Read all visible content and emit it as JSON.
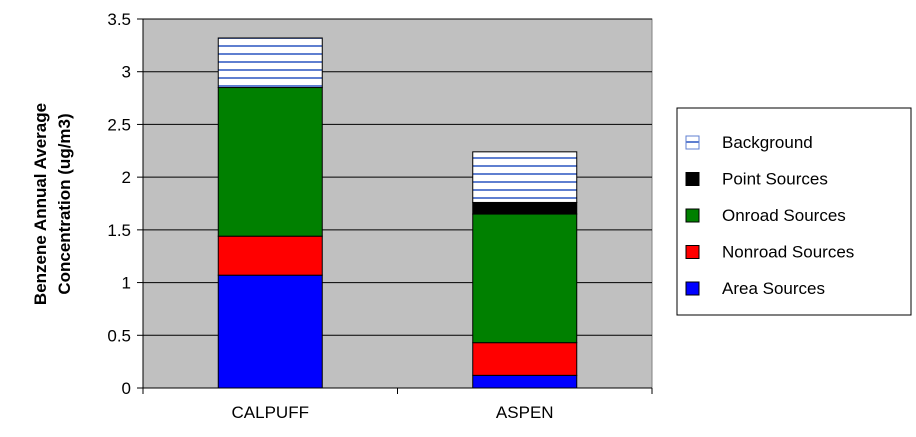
{
  "chart_data": {
    "type": "bar",
    "stacked": true,
    "categories": [
      "CALPUFF",
      "ASPEN"
    ],
    "series": [
      {
        "name": "Area Sources",
        "color": "#0000ff",
        "pattern": "solid",
        "values": [
          1.07,
          0.12
        ]
      },
      {
        "name": "Nonroad Sources",
        "color": "#ff0000",
        "pattern": "solid",
        "values": [
          0.37,
          0.31
        ]
      },
      {
        "name": "Onroad Sources",
        "color": "#008000",
        "pattern": "solid",
        "values": [
          1.41,
          1.22
        ]
      },
      {
        "name": "Point Sources",
        "color": "#000000",
        "pattern": "solid",
        "values": [
          0.0,
          0.11
        ]
      },
      {
        "name": "Background",
        "color": "#5f7fd0",
        "pattern": "horizontal-stripes",
        "values": [
          0.47,
          0.48
        ]
      }
    ],
    "legend_order": [
      "Background",
      "Point Sources",
      "Onroad Sources",
      "Nonroad Sources",
      "Area Sources"
    ],
    "ylabel_lines": [
      "Benzene Annual Average",
      "Concentration (ug/m3)"
    ],
    "yticks": [
      "0",
      "0.5",
      "1",
      "1.5",
      "2",
      "2.5",
      "3",
      "3.5"
    ],
    "ylim": [
      0,
      3.5
    ],
    "plot_background": "#c0c0c0",
    "legend_position": "right",
    "grid": "horizontal"
  }
}
